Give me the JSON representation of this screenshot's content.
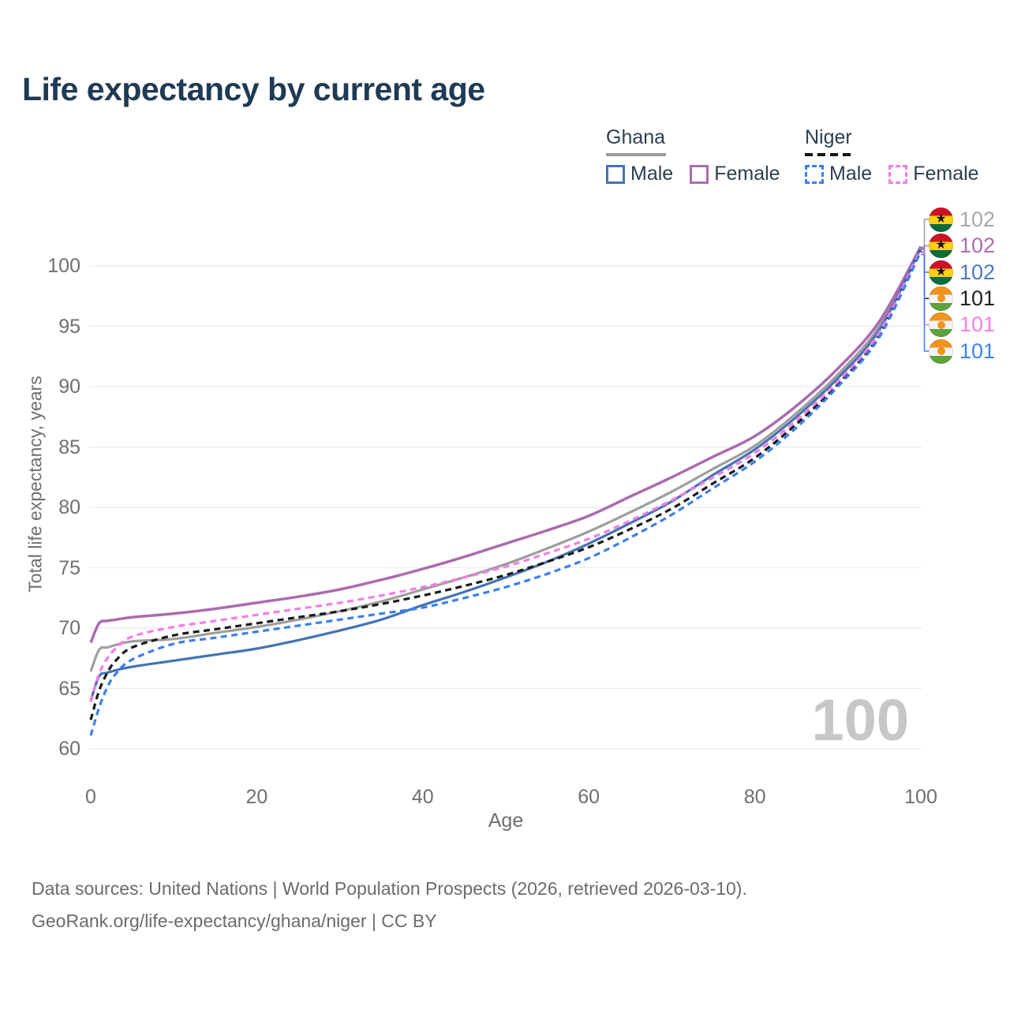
{
  "header": {
    "title": "Life expectancy by current age"
  },
  "legend": {
    "countries": [
      {
        "name": "Ghana",
        "line_style": "solid",
        "underline_color": "#9e9e9e",
        "items": [
          {
            "label": "Male",
            "color": "#4473b5"
          },
          {
            "label": "Female",
            "color": "#ab6bb0"
          }
        ]
      },
      {
        "name": "Niger",
        "line_style": "dashed",
        "underline_color": "#151515",
        "items": [
          {
            "label": "Male",
            "color": "#3b7ff2"
          },
          {
            "label": "Female",
            "color": "#f97ce5"
          }
        ]
      }
    ]
  },
  "chart_data": {
    "type": "line",
    "title": "Life expectancy by current age",
    "xlabel": "Age",
    "ylabel": "Total life expectancy, years",
    "x_ticks": [
      0,
      20,
      40,
      60,
      80,
      100
    ],
    "y_ticks": [
      60,
      65,
      70,
      75,
      80,
      85,
      90,
      95,
      100
    ],
    "xlim": [
      0,
      100
    ],
    "ylim": [
      58.5,
      103
    ],
    "grid": "horizontal-only",
    "gridline_color": "#ebebeb",
    "watermark": "100",
    "ages": [
      0,
      1,
      2,
      3,
      5,
      10,
      15,
      20,
      25,
      30,
      35,
      40,
      45,
      50,
      55,
      60,
      65,
      70,
      75,
      80,
      85,
      90,
      95,
      100
    ],
    "series": [
      {
        "name": "Ghana Total",
        "country": "Ghana",
        "sex": "Total",
        "style": "solid",
        "color": "#9e9e9e",
        "end_label": "102",
        "end_label_color": "#a8a8a8",
        "values": [
          66.4,
          68.2,
          68.4,
          68.6,
          68.9,
          69.1,
          69.6,
          70.1,
          70.7,
          71.4,
          72.2,
          73.2,
          74.2,
          75.3,
          76.6,
          78.0,
          79.6,
          81.3,
          83.2,
          85.1,
          87.8,
          91.0,
          95.0,
          101.5
        ]
      },
      {
        "name": "Ghana Female",
        "country": "Ghana",
        "sex": "Female",
        "style": "solid",
        "color": "#ab6bb0",
        "end_label": "102",
        "end_label_color": "#b06ab3",
        "values": [
          68.8,
          70.4,
          70.6,
          70.7,
          70.9,
          71.2,
          71.6,
          72.1,
          72.6,
          73.2,
          74.0,
          74.9,
          75.9,
          77.0,
          78.1,
          79.3,
          80.9,
          82.5,
          84.2,
          85.9,
          88.4,
          91.5,
          95.4,
          101.6
        ]
      },
      {
        "name": "Ghana Male",
        "country": "Ghana",
        "sex": "Male",
        "style": "solid",
        "color": "#4473b5",
        "end_label": "102",
        "end_label_color": "#4d7ac0",
        "values": [
          64.0,
          66.0,
          66.3,
          66.5,
          66.8,
          67.3,
          67.8,
          68.3,
          69.0,
          69.8,
          70.7,
          71.9,
          73.0,
          74.2,
          75.5,
          77.0,
          78.7,
          80.5,
          82.7,
          84.8,
          87.5,
          90.7,
          94.7,
          101.5
        ]
      },
      {
        "name": "Niger Total",
        "country": "Niger",
        "sex": "Total",
        "style": "dashed",
        "color": "#1a1a1a",
        "end_label": "101",
        "end_label_color": "#1f1f1f",
        "values": [
          62.4,
          64.8,
          66.3,
          67.3,
          68.4,
          69.4,
          69.9,
          70.4,
          70.9,
          71.4,
          72.0,
          72.7,
          73.5,
          74.4,
          75.5,
          76.7,
          78.2,
          79.9,
          82.0,
          84.1,
          86.9,
          90.2,
          94.3,
          101.3
        ]
      },
      {
        "name": "Niger Female",
        "country": "Niger",
        "sex": "Female",
        "style": "dashed",
        "color": "#f97ce5",
        "end_label": "101",
        "end_label_color": "#fb7ce8",
        "values": [
          63.9,
          66.2,
          67.5,
          68.3,
          69.3,
          70.1,
          70.6,
          71.1,
          71.6,
          72.1,
          72.7,
          73.4,
          74.2,
          75.1,
          76.2,
          77.4,
          78.9,
          80.6,
          82.5,
          84.5,
          87.2,
          90.4,
          94.5,
          101.4
        ]
      },
      {
        "name": "Niger Male",
        "country": "Niger",
        "sex": "Male",
        "style": "dashed",
        "color": "#3b7ff2",
        "end_label": "101",
        "end_label_color": "#3f82f2",
        "values": [
          61.1,
          63.4,
          65.1,
          66.2,
          67.4,
          68.7,
          69.2,
          69.7,
          70.2,
          70.7,
          71.2,
          71.7,
          72.5,
          73.4,
          74.5,
          75.8,
          77.5,
          79.4,
          81.6,
          83.8,
          86.6,
          90.0,
          94.1,
          101.2
        ]
      }
    ]
  },
  "footer": {
    "line1": "Data sources: United Nations | World Population Prospects (2026, retrieved 2026-03-10).",
    "line2": "GeoRank.org/life-expectancy/ghana/niger | CC BY"
  }
}
